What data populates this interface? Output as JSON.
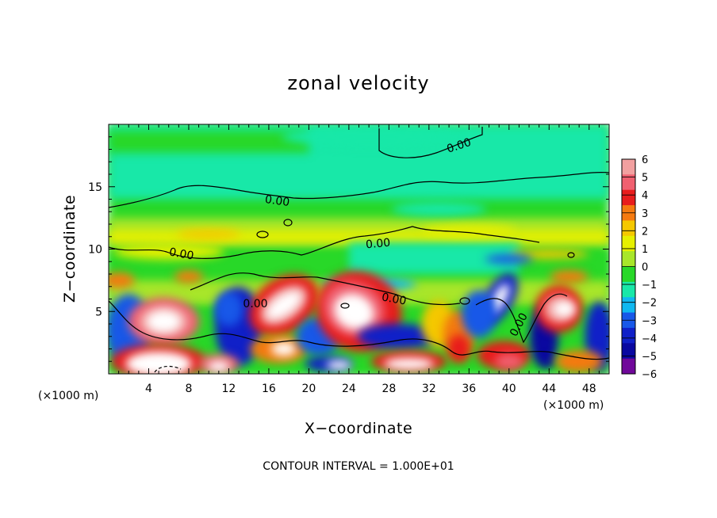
{
  "chart_data": {
    "type": "heatmap",
    "title": "zonal velocity",
    "xlabel": "X−coordinate",
    "ylabel": "Z−coordinate",
    "x_unit_left": "(×1000 m)",
    "x_unit_right": "(×1000 m)",
    "xlim": [
      0,
      50
    ],
    "ylim": [
      0,
      20
    ],
    "x_ticks": [
      4,
      8,
      12,
      16,
      20,
      24,
      28,
      32,
      36,
      40,
      44,
      48
    ],
    "y_ticks": [
      5,
      10,
      15
    ],
    "colorbar": {
      "levels": [
        6,
        5,
        4,
        3,
        2,
        1,
        0,
        -1,
        -2,
        -3,
        -4,
        -5,
        -6
      ],
      "level_labels": [
        "6",
        "5",
        "4",
        "3",
        "2",
        "1",
        "0",
        "−1",
        "−2",
        "−3",
        "−4",
        "−5",
        "−6"
      ],
      "colors": [
        "#f2a0a0",
        "#f06070",
        "#e81c1c",
        "#f57a10",
        "#f5c800",
        "#e6f000",
        "#a8e62a",
        "#28d828",
        "#18e8a8",
        "#10b8f0",
        "#1858e8",
        "#1020c8",
        "#0a08a0",
        "#70089a"
      ],
      "overflow_color": "#ffffff"
    },
    "contour_label": "0.00",
    "contour_interval_text": "CONTOUR INTERVAL = 1.000E+01"
  }
}
